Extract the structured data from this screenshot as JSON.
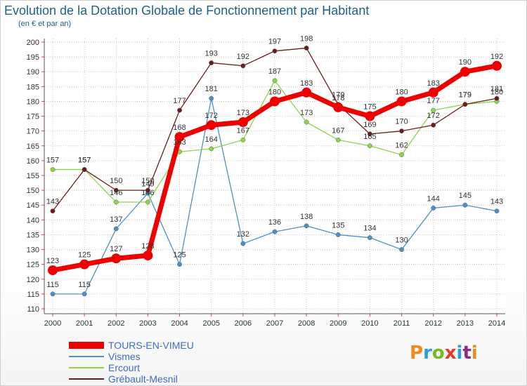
{
  "header": {
    "title": "Evolution de la Dotation Globale de Fonctionnement par Habitant",
    "subtitle": "(en € et par an)"
  },
  "brand": {
    "text": "Proxiti",
    "colors": [
      "#f08a1c",
      "#2aa0d6",
      "#7ab828",
      "#e5392b",
      "#2aa0d6",
      "#8a2b8a",
      "#f08a1c"
    ]
  },
  "chart_data": {
    "type": "line",
    "x": [
      2000,
      2001,
      2002,
      2003,
      2004,
      2005,
      2006,
      2007,
      2008,
      2009,
      2010,
      2011,
      2012,
      2013,
      2014
    ],
    "ylim": [
      110,
      200
    ],
    "yticks": [
      110,
      115,
      120,
      125,
      130,
      135,
      140,
      145,
      150,
      155,
      160,
      165,
      170,
      175,
      180,
      185,
      190,
      195,
      200
    ],
    "grid": true,
    "legend_position": "bottom-left",
    "series": [
      {
        "name": "TOURS-EN-VIMEU",
        "color": "#ee0000",
        "values": [
          123,
          125,
          127,
          128,
          168,
          172,
          173,
          180,
          183,
          178,
          175,
          180,
          183,
          190,
          192
        ]
      },
      {
        "name": "Vismes",
        "color": "#4f8fc8",
        "values": [
          115,
          115,
          137,
          149,
          125,
          181,
          132,
          136,
          138,
          135,
          134,
          130,
          144,
          145,
          143
        ]
      },
      {
        "name": "Ercourt",
        "color": "#8ed449",
        "values": [
          157,
          157,
          146,
          146,
          163,
          164,
          167,
          187,
          173,
          167,
          165,
          162,
          177,
          179,
          180
        ]
      },
      {
        "name": "Grébault-Mesnil",
        "color": "#6b1c1c",
        "values": [
          143,
          157,
          150,
          150,
          177,
          193,
          192,
          197,
          198,
          179,
          169,
          170,
          172,
          179,
          181
        ]
      }
    ]
  }
}
